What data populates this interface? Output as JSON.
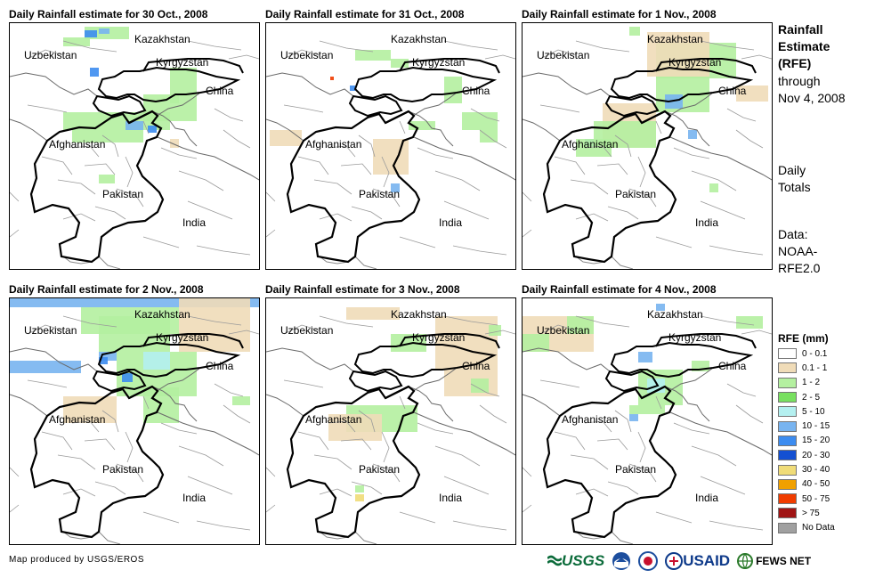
{
  "panels": [
    {
      "title": "Daily Rainfall estimate for 30 Oct., 2008"
    },
    {
      "title": "Daily Rainfall estimate for 31 Oct., 2008"
    },
    {
      "title": "Daily Rainfall estimate for 1 Nov., 2008"
    },
    {
      "title": "Daily Rainfall estimate for 2 Nov., 2008"
    },
    {
      "title": "Daily Rainfall estimate for 3 Nov., 2008"
    },
    {
      "title": "Daily Rainfall estimate for 4 Nov., 2008"
    }
  ],
  "map_labels": {
    "kazakhstan": "Kazakhstan",
    "uzbekistan": "Uzbekistan",
    "kyrgyzstan": "Kyrgyzstan",
    "china": "China",
    "afghanistan": "Afghanistan",
    "pakistan": "Pakistan",
    "india": "India"
  },
  "side": {
    "title_lines": [
      "Rainfall",
      "Estimate",
      "(RFE)"
    ],
    "through": "through",
    "date": "Nov 4, 2008",
    "daily": "Daily",
    "totals": "Totals",
    "data_label": "Data:",
    "data_source_1": "NOAA-",
    "data_source_2": "RFE2.0"
  },
  "legend": {
    "title": "RFE (mm)",
    "items": [
      {
        "label": "0 - 0.1",
        "color": "#ffffff"
      },
      {
        "label": "0.1 - 1",
        "color": "#f0dcb8"
      },
      {
        "label": "1 - 2",
        "color": "#b4f0a0"
      },
      {
        "label": "2 - 5",
        "color": "#78e060"
      },
      {
        "label": "5 - 10",
        "color": "#b4f0f0"
      },
      {
        "label": "10 - 15",
        "color": "#78b4f0"
      },
      {
        "label": "15 - 20",
        "color": "#3c8cf0"
      },
      {
        "label": "20 - 30",
        "color": "#1450d2"
      },
      {
        "label": "30 - 40",
        "color": "#f0dc78"
      },
      {
        "label": "40 - 50",
        "color": "#f0a000"
      },
      {
        "label": "50 - 75",
        "color": "#f03c00"
      },
      {
        "label": "> 75",
        "color": "#a01414"
      },
      {
        "label": "No Data",
        "color": "#a0a0a0"
      }
    ]
  },
  "footer": {
    "credit": "Map produced by USGS/EROS",
    "logos": [
      "USGS",
      "NOAA",
      "USAID",
      "FEWS NET"
    ]
  }
}
